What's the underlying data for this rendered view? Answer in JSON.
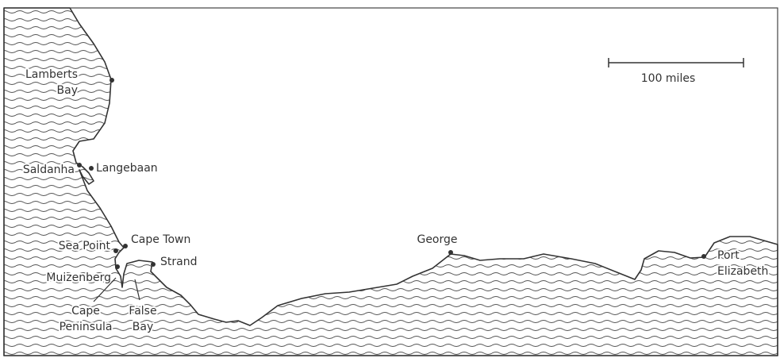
{
  "places": [
    {
      "lines": [
        "Lamberts",
        "Bay"
      ]
    },
    {
      "lines": [
        "Saldanha"
      ]
    },
    {
      "lines": [
        "Langebaan"
      ]
    },
    {
      "lines": [
        "Sea Point"
      ]
    },
    {
      "lines": [
        "Cape Town"
      ]
    },
    {
      "lines": [
        "Strand"
      ]
    },
    {
      "lines": [
        "Muizenberg"
      ]
    },
    {
      "lines": [
        "Cape",
        "Peninsula"
      ]
    },
    {
      "lines": [
        "False",
        "Bay"
      ]
    },
    {
      "lines": [
        "George"
      ]
    },
    {
      "lines": [
        "Port",
        "Elizabeth"
      ]
    }
  ],
  "scale": {
    "label": "100 miles"
  }
}
